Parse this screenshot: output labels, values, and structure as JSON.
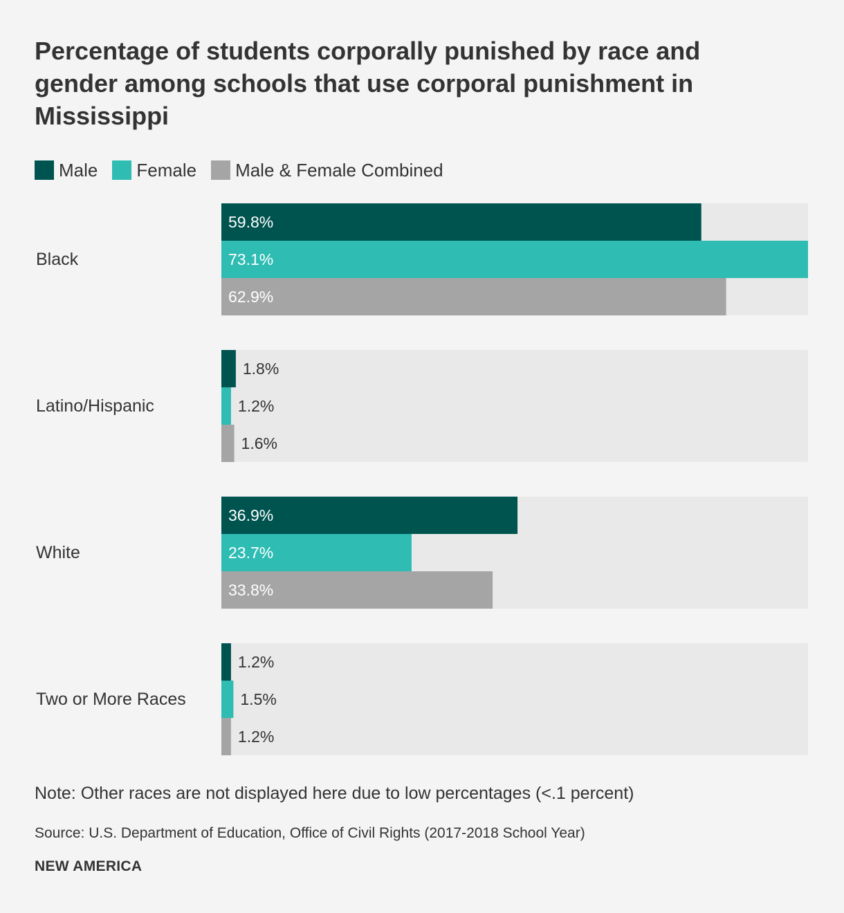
{
  "title": "Percentage of students corporally punished by race and gender among schools that use corporal punishment in Mississippi",
  "legend": [
    {
      "label": "Male",
      "color": "#005450"
    },
    {
      "label": "Female",
      "color": "#2ebcb3"
    },
    {
      "label": "Male & Female Combined",
      "color": "#a5a5a5"
    }
  ],
  "chart_data": {
    "type": "bar",
    "orientation": "horizontal",
    "title": "Percentage of students corporally punished by race and gender among schools that use corporal punishment in Mississippi",
    "categories": [
      "Black",
      "Latino/Hispanic",
      "White",
      "Two or More Races"
    ],
    "series": [
      {
        "name": "Male",
        "color": "#005450",
        "values": [
          59.8,
          1.8,
          36.9,
          1.2
        ],
        "labels": [
          "59.8%",
          "1.8%",
          "36.9%",
          "1.2%"
        ]
      },
      {
        "name": "Female",
        "color": "#2ebcb3",
        "values": [
          73.1,
          1.2,
          23.7,
          1.5
        ],
        "labels": [
          "73.1%",
          "1.2%",
          "23.7%",
          "1.5%"
        ]
      },
      {
        "name": "Male & Female Combined",
        "color": "#a5a5a5",
        "values": [
          62.9,
          1.6,
          33.8,
          1.2
        ],
        "labels": [
          "62.9%",
          "1.6%",
          "33.8%",
          "1.2%"
        ]
      }
    ],
    "xlim": [
      0,
      73.1
    ],
    "track_color": "#e9e9e9",
    "label_inside_color": "#ffffff",
    "label_outside_color": "#333333"
  },
  "note": "Note: Other races are not displayed here due to low percentages (<.1 percent)",
  "source": "Source: U.S. Department of Education, Office of Civil Rights (2017-2018 School Year)",
  "brand": "NEW AMERICA"
}
